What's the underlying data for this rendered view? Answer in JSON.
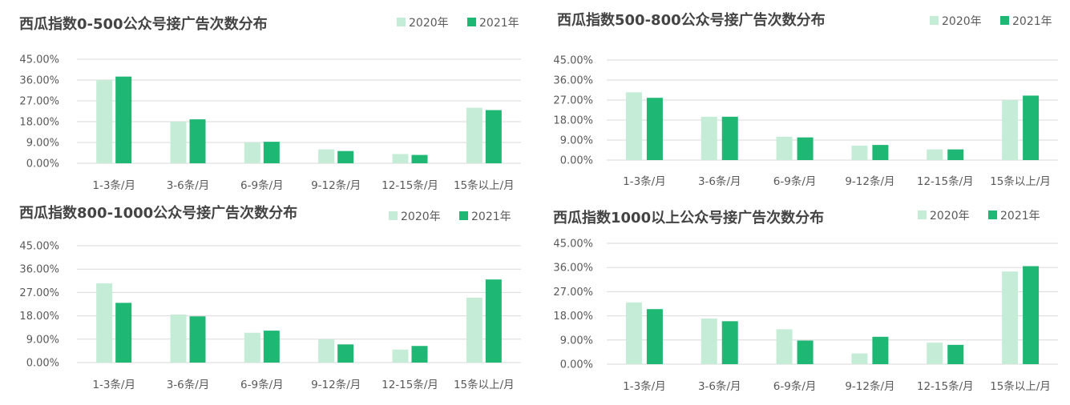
{
  "colors": {
    "s2020": "#c5ecd6",
    "s2021": "#1fb774",
    "grid": "#d9d9d9",
    "text": "#595959"
  },
  "legend": {
    "a": "2020年",
    "b": "2021年"
  },
  "chart_data": [
    {
      "type": "bar",
      "title": "西瓜指数0-500公众号接广告次数分布",
      "categories": [
        "1-3条/月",
        "3-6条/月",
        "6-9条/月",
        "9-12条/月",
        "12-15条/月",
        "15条以上/月"
      ],
      "series": [
        {
          "name": "2020年",
          "values": [
            36.0,
            18.0,
            9.0,
            6.0,
            4.0,
            24.0
          ]
        },
        {
          "name": "2021年",
          "values": [
            37.5,
            19.0,
            9.3,
            5.3,
            3.6,
            23.0
          ]
        }
      ],
      "yticks": [
        "0.00%",
        "9.00%",
        "18.00%",
        "27.00%",
        "36.00%",
        "45.00%"
      ],
      "ylim": [
        0,
        45
      ],
      "legend_position": "top-right"
    },
    {
      "type": "bar",
      "title": "西瓜指数500-800公众号接广告次数分布",
      "categories": [
        "1-3条/月",
        "3-6条/月",
        "6-9条/月",
        "9-12条/月",
        "12-15条/月",
        "15条以上/月"
      ],
      "series": [
        {
          "name": "2020年",
          "values": [
            30.5,
            19.5,
            10.5,
            6.5,
            4.8,
            27.0
          ]
        },
        {
          "name": "2021年",
          "values": [
            28.0,
            19.5,
            10.2,
            6.8,
            4.8,
            29.0
          ]
        }
      ],
      "yticks": [
        "0.00%",
        "9.00%",
        "18.00%",
        "27.00%",
        "36.00%",
        "45.00%"
      ],
      "ylim": [
        0,
        45
      ],
      "legend_position": "top-right"
    },
    {
      "type": "bar",
      "title": "西瓜指数800-1000公众号接广告次数分布",
      "categories": [
        "1-3条/月",
        "3-6条/月",
        "6-9条/月",
        "9-12条/月",
        "12-15条/月",
        "15条以上/月"
      ],
      "series": [
        {
          "name": "2020年",
          "values": [
            30.5,
            18.5,
            11.5,
            9.0,
            5.0,
            25.0
          ]
        },
        {
          "name": "2021年",
          "values": [
            23.0,
            17.8,
            12.3,
            7.0,
            6.4,
            32.0
          ]
        }
      ],
      "yticks": [
        "0.00%",
        "9.00%",
        "18.00%",
        "27.00%",
        "36.00%",
        "45.00%"
      ],
      "ylim": [
        0,
        45
      ],
      "legend_position": "top-right"
    },
    {
      "type": "bar",
      "title": "西瓜指数1000以上公众号接广告次数分布",
      "categories": [
        "1-3条/月",
        "3-6条/月",
        "6-9条/月",
        "9-12条/月",
        "12-15条/月",
        "15条以上/月"
      ],
      "series": [
        {
          "name": "2020年",
          "values": [
            23.0,
            17.0,
            13.0,
            4.0,
            8.0,
            34.5
          ]
        },
        {
          "name": "2021年",
          "values": [
            20.5,
            16.0,
            8.8,
            10.2,
            7.2,
            36.5
          ]
        }
      ],
      "yticks": [
        "0.00%",
        "9.00%",
        "18.00%",
        "27.00%",
        "36.00%",
        "45.00%"
      ],
      "ylim": [
        0,
        45
      ],
      "legend_position": "top-right"
    }
  ]
}
